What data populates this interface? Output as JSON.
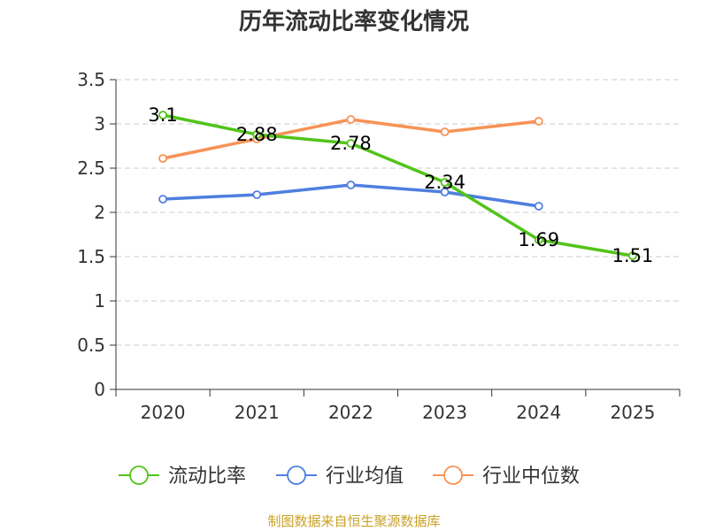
{
  "chart_data": {
    "type": "line",
    "title": "历年流动比率变化情况",
    "categories": [
      "2020",
      "2021",
      "2022",
      "2023",
      "2024",
      "2025"
    ],
    "ylim": [
      0,
      3.5
    ],
    "yticks": [
      "0",
      "0.5",
      "1",
      "1.5",
      "2",
      "2.5",
      "3",
      "3.5"
    ],
    "grid": true,
    "legend_position": "bottom",
    "series": [
      {
        "name": "流动比率",
        "color": "#52c41a",
        "values": [
          3.1,
          2.88,
          2.78,
          2.34,
          1.69,
          1.51
        ],
        "labels": [
          "3.1",
          "2.88",
          "2.78",
          "2.34",
          "1.69",
          "1.51"
        ]
      },
      {
        "name": "行业均值",
        "color": "#4f7fdf",
        "values": [
          2.15,
          2.2,
          2.31,
          2.23,
          2.07,
          null
        ]
      },
      {
        "name": "行业中位数",
        "color": "#f79255",
        "values": [
          2.61,
          2.83,
          3.05,
          2.91,
          3.03,
          null
        ]
      }
    ],
    "source": "制图数据来自恒生聚源数据库"
  }
}
